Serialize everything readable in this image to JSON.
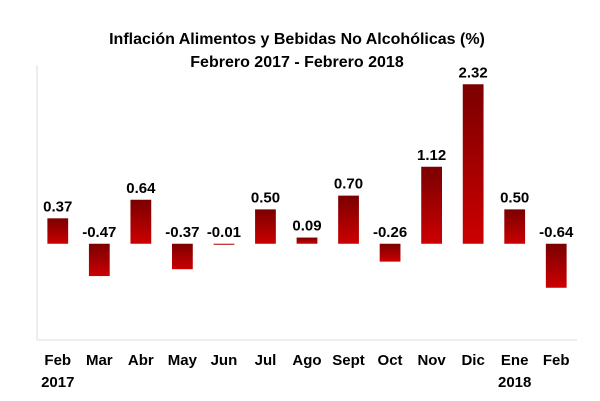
{
  "chart_data": {
    "type": "bar",
    "title": "Inflación Alimentos y Bebidas No Alcohólicas (%)",
    "subtitle": "Febrero 2017 - Febrero 2018",
    "categories": [
      "Feb\n2017",
      "Mar",
      "Abr",
      "May",
      "Jun",
      "Jul",
      "Ago",
      "Sept",
      "Oct",
      "Nov",
      "Dic",
      "Ene\n2018",
      "Feb"
    ],
    "values": [
      0.37,
      -0.47,
      0.64,
      -0.37,
      -0.01,
      0.5,
      0.09,
      0.7,
      -0.26,
      1.12,
      2.32,
      0.5,
      -0.64
    ],
    "value_labels": [
      "0.37",
      "-0.47",
      "0.64",
      "-0.37",
      "-0.01",
      "0.50",
      "0.09",
      "0.70",
      "-0.26",
      "1.12",
      "2.32",
      "0.50",
      "-0.64"
    ],
    "color": "#cc0000",
    "ylim": [
      -1.4,
      2.6
    ]
  }
}
